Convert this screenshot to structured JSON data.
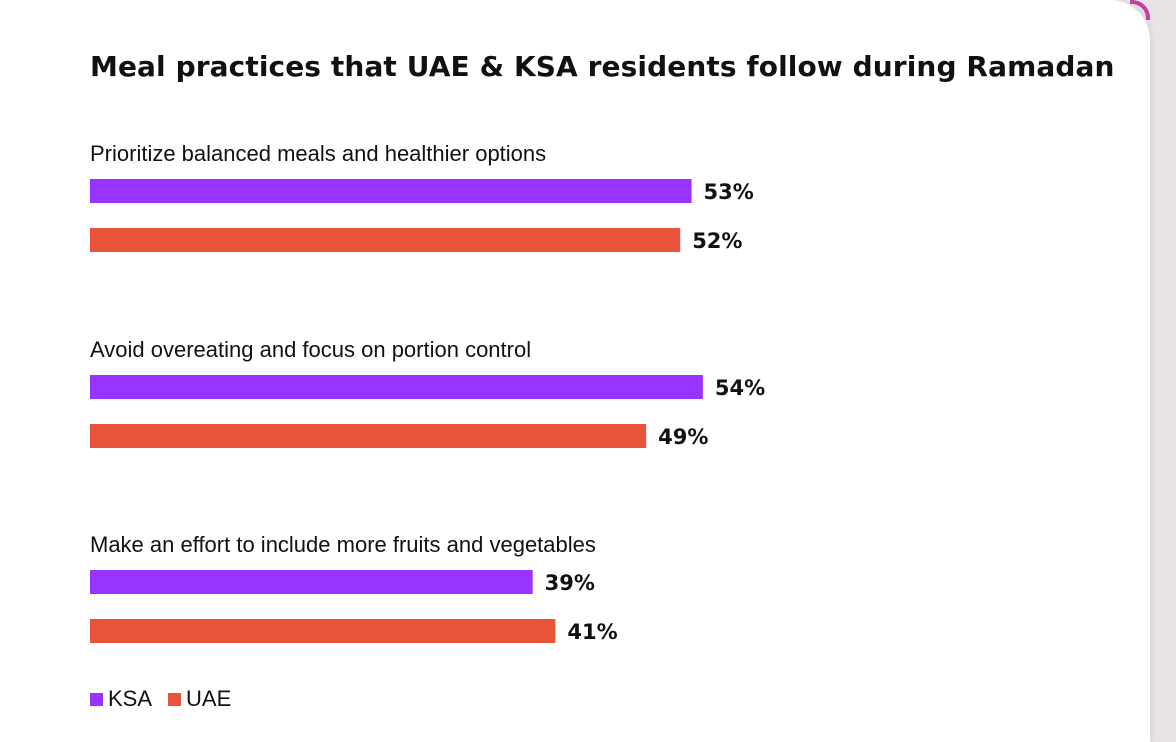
{
  "chart_data": {
    "type": "bar",
    "orientation": "horizontal",
    "title": "Meal practices that UAE & KSA residents follow during Ramadan",
    "categories": [
      "Prioritize balanced meals and healthier options",
      "Avoid overeating and focus on portion control",
      "Make an effort to include more fruits and vegetables"
    ],
    "series": [
      {
        "name": "KSA",
        "values": [
          53,
          54,
          39
        ],
        "labels": [
          "53%",
          "54%",
          "39%"
        ],
        "color": "#9933ff"
      },
      {
        "name": "UAE",
        "values": [
          52,
          49,
          41
        ],
        "labels": [
          "52%",
          "49%",
          "41%"
        ],
        "color": "#e8533b"
      }
    ],
    "unit": "%",
    "xlim": [
      0,
      100
    ],
    "grid": false,
    "legend_placement": "bottom-left"
  }
}
